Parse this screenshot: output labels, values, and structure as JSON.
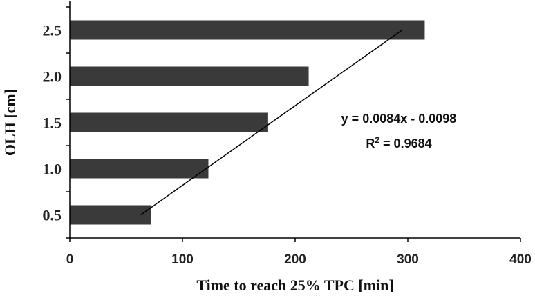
{
  "chart_data": {
    "type": "bar",
    "orientation": "horizontal",
    "categories": [
      "0.5",
      "1.0",
      "1.5",
      "2.0",
      "2.5"
    ],
    "values": [
      72,
      123,
      176,
      212,
      315
    ],
    "xlabel": "Time to reach 25% TPC [min]",
    "ylabel": "OLH [cm]",
    "xlim": [
      0,
      400
    ],
    "xticks": [
      "0",
      "100",
      "200",
      "300",
      "400"
    ],
    "grid": false,
    "bar_color": "#3a3a3a",
    "trendline": {
      "type": "linear",
      "equation": "y = 0.0084x - 0.0098",
      "r2_prefix": "R",
      "r2_exp": "2",
      "r2_value": " = 0.9684",
      "points": [
        [
          63,
          0.5
        ],
        [
          295,
          2.5
        ]
      ]
    }
  }
}
